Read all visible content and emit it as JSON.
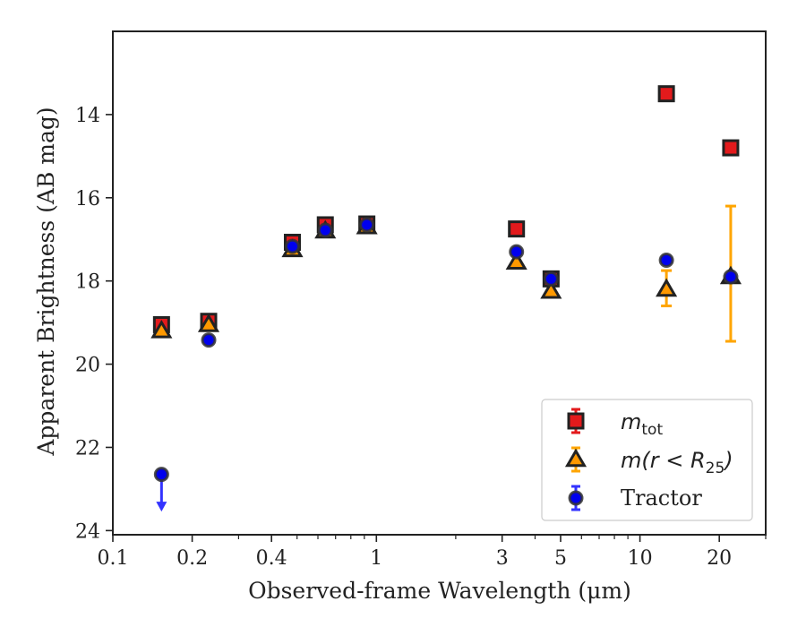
{
  "chart_data": {
    "type": "scatter",
    "xlabel": "Observed-frame Wavelength (μm)",
    "ylabel": "Apparent Brightness (AB mag)",
    "x_scale": "log",
    "xlim": [
      0.1,
      30
    ],
    "ylim": [
      24.1,
      12.0
    ],
    "y_inverted": true,
    "x_ticks": [
      {
        "value": 0.1,
        "label": "0.1"
      },
      {
        "value": 0.2,
        "label": "0.2"
      },
      {
        "value": 0.4,
        "label": "0.4"
      },
      {
        "value": 1,
        "label": "1"
      },
      {
        "value": 3,
        "label": "3"
      },
      {
        "value": 5,
        "label": "5"
      },
      {
        "value": 10,
        "label": "10"
      },
      {
        "value": 20,
        "label": "20"
      }
    ],
    "x_minor_ticks": [
      0.3,
      0.5,
      0.6,
      0.7,
      0.8,
      0.9,
      2,
      4,
      6,
      7,
      8,
      9,
      30
    ],
    "y_ticks": [
      {
        "value": 14,
        "label": "14"
      },
      {
        "value": 16,
        "label": "16"
      },
      {
        "value": 18,
        "label": "18"
      },
      {
        "value": 20,
        "label": "20"
      },
      {
        "value": 22,
        "label": "22"
      },
      {
        "value": 24,
        "label": "24"
      }
    ],
    "grid": false,
    "legend_position": "bottom-right",
    "series": [
      {
        "name": "m_tot",
        "legend_label": "m",
        "legend_sub": "tot",
        "marker": "square",
        "color": "#e31a1c",
        "edge_color": "#222222",
        "error_color": "#e31a1c",
        "points": [
          {
            "x": 0.153,
            "y": 19.05
          },
          {
            "x": 0.231,
            "y": 18.97
          },
          {
            "x": 0.48,
            "y": 17.07
          },
          {
            "x": 0.64,
            "y": 16.65
          },
          {
            "x": 0.92,
            "y": 16.63
          },
          {
            "x": 3.4,
            "y": 16.75
          },
          {
            "x": 4.6,
            "y": 17.95
          },
          {
            "x": 12.6,
            "y": 13.5
          },
          {
            "x": 22.1,
            "y": 14.8
          }
        ]
      },
      {
        "name": "m(r < R_25)",
        "legend_label": "m(r < R",
        "legend_sub": "25",
        "legend_close": ")",
        "marker": "triangle",
        "color": "#ff9900",
        "edge_color": "#222222",
        "error_color": "#ffa500",
        "points": [
          {
            "x": 0.153,
            "y": 19.2
          },
          {
            "x": 0.231,
            "y": 19.05
          },
          {
            "x": 0.48,
            "y": 17.25
          },
          {
            "x": 0.64,
            "y": 16.8
          },
          {
            "x": 0.92,
            "y": 16.7
          },
          {
            "x": 3.4,
            "y": 17.55
          },
          {
            "x": 4.6,
            "y": 18.25
          },
          {
            "x": 12.6,
            "y": 18.2,
            "yerr_low": 17.75,
            "yerr_high": 18.6
          },
          {
            "x": 22.1,
            "y": 17.9,
            "yerr_low": 16.2,
            "yerr_high": 19.45
          }
        ]
      },
      {
        "name": "Tractor",
        "legend_label": "Tractor",
        "marker": "circle",
        "color": "#0000ee",
        "edge_color": "#333333",
        "error_color": "#3333ff",
        "points": [
          {
            "x": 0.153,
            "y": 22.65,
            "upper_limit": true,
            "arrow_to": 23.5
          },
          {
            "x": 0.231,
            "y": 19.42
          },
          {
            "x": 0.48,
            "y": 17.17
          },
          {
            "x": 0.64,
            "y": 16.78
          },
          {
            "x": 0.92,
            "y": 16.65
          },
          {
            "x": 3.4,
            "y": 17.3
          },
          {
            "x": 4.6,
            "y": 17.95
          },
          {
            "x": 12.6,
            "y": 17.5
          },
          {
            "x": 22.1,
            "y": 17.9
          }
        ]
      }
    ]
  }
}
